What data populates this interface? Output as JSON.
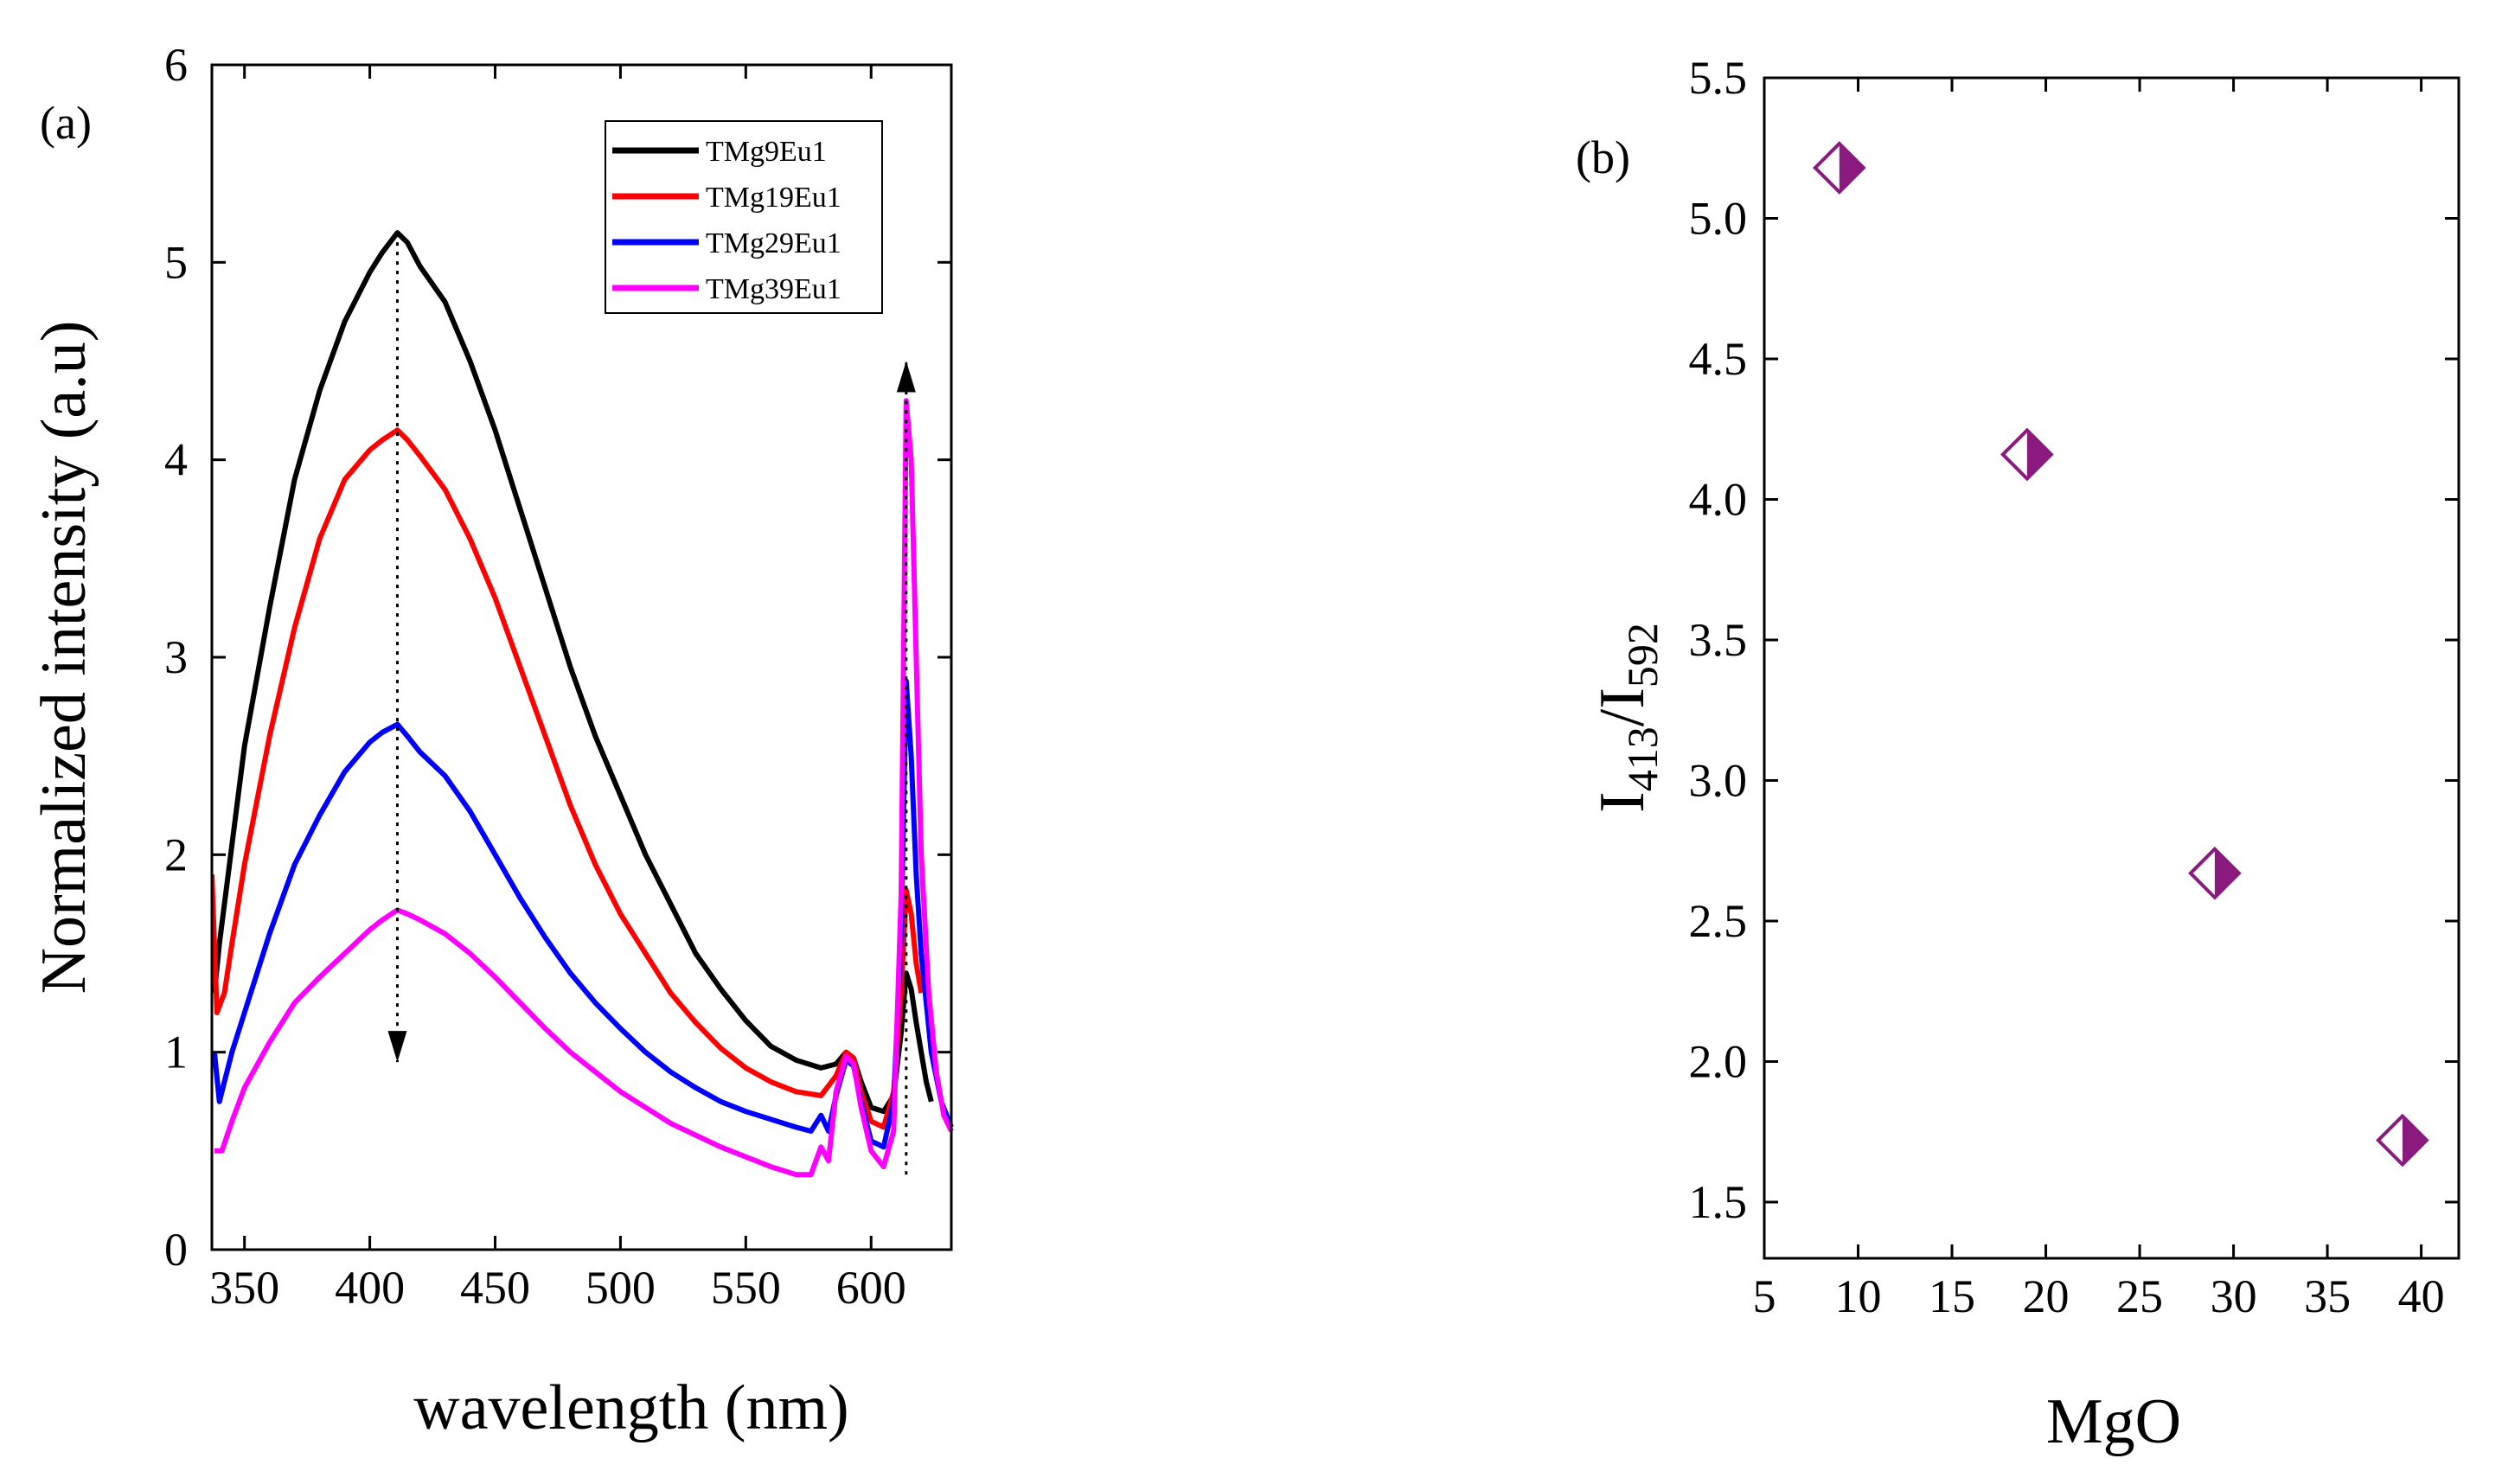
{
  "chart_data": [
    {
      "panel_label": "(a)",
      "type": "line",
      "xlabel": "wavelength (nm)",
      "ylabel": "Normalized intensity (a.u)",
      "xlim": [
        337,
        632
      ],
      "ylim": [
        0,
        6
      ],
      "xticks": [
        350,
        400,
        450,
        500,
        550,
        600
      ],
      "yticks": [
        0,
        1,
        2,
        3,
        4,
        5,
        6
      ],
      "legend_position": "top-right",
      "annotations": [
        {
          "type": "dotted-arrow",
          "direction": "down",
          "x": 411,
          "from_y": 5.15,
          "to_y": 0.95
        },
        {
          "type": "dotted-arrow",
          "direction": "up",
          "x": 614,
          "from_y": 0.38,
          "to_y": 4.5
        }
      ],
      "series": [
        {
          "name": "TMg9Eu1",
          "color": "#000000",
          "x": [
            338,
            340,
            345,
            350,
            360,
            370,
            380,
            390,
            400,
            405,
            411,
            415,
            420,
            430,
            440,
            450,
            460,
            470,
            480,
            490,
            500,
            510,
            520,
            530,
            540,
            550,
            560,
            570,
            580,
            586,
            590,
            593,
            596,
            600,
            605,
            609,
            612,
            614,
            616,
            618,
            620,
            622,
            624
          ],
          "y": [
            1.3,
            1.55,
            2.05,
            2.55,
            3.25,
            3.9,
            4.35,
            4.7,
            4.95,
            5.05,
            5.15,
            5.1,
            4.98,
            4.8,
            4.5,
            4.15,
            3.75,
            3.35,
            2.95,
            2.6,
            2.3,
            2.0,
            1.75,
            1.5,
            1.32,
            1.16,
            1.03,
            0.96,
            0.92,
            0.94,
            1.0,
            0.97,
            0.85,
            0.72,
            0.7,
            0.78,
            1.1,
            1.4,
            1.32,
            1.15,
            1.0,
            0.85,
            0.75
          ]
        },
        {
          "name": "TMg19Eu1",
          "color": "#ff0000",
          "x": [
            337,
            339,
            342,
            345,
            350,
            360,
            370,
            380,
            390,
            400,
            405,
            411,
            415,
            420,
            430,
            440,
            450,
            460,
            470,
            480,
            490,
            500,
            510,
            520,
            530,
            540,
            550,
            560,
            570,
            580,
            586,
            590,
            593,
            596,
            600,
            605,
            609,
            612,
            614,
            616,
            618,
            620
          ],
          "y": [
            1.9,
            1.2,
            1.3,
            1.55,
            1.95,
            2.6,
            3.15,
            3.6,
            3.9,
            4.05,
            4.1,
            4.15,
            4.1,
            4.02,
            3.85,
            3.6,
            3.3,
            2.95,
            2.6,
            2.25,
            1.95,
            1.7,
            1.5,
            1.3,
            1.15,
            1.02,
            0.92,
            0.85,
            0.8,
            0.78,
            0.88,
            1.0,
            0.97,
            0.8,
            0.65,
            0.62,
            0.8,
            1.3,
            1.82,
            1.7,
            1.45,
            1.3
          ]
        },
        {
          "name": "TMg29Eu1",
          "color": "#0000ff",
          "x": [
            338,
            340,
            342,
            345,
            350,
            360,
            370,
            380,
            390,
            400,
            405,
            411,
            415,
            420,
            430,
            440,
            450,
            460,
            470,
            480,
            490,
            500,
            510,
            520,
            530,
            540,
            550,
            560,
            570,
            576,
            580,
            583,
            586,
            590,
            593,
            596,
            600,
            605,
            609,
            612,
            614,
            616,
            618,
            620,
            624,
            628,
            632
          ],
          "y": [
            1.0,
            0.75,
            0.85,
            1.0,
            1.2,
            1.6,
            1.95,
            2.2,
            2.42,
            2.57,
            2.62,
            2.66,
            2.6,
            2.52,
            2.4,
            2.22,
            2.0,
            1.78,
            1.58,
            1.4,
            1.25,
            1.12,
            1.0,
            0.9,
            0.82,
            0.75,
            0.7,
            0.66,
            0.62,
            0.6,
            0.68,
            0.6,
            0.78,
            0.96,
            0.93,
            0.75,
            0.55,
            0.52,
            0.75,
            1.6,
            2.88,
            2.5,
            1.9,
            1.5,
            1.0,
            0.75,
            0.62
          ]
        },
        {
          "name": "TMg39Eu1",
          "color": "#ff00ff",
          "x": [
            338,
            341,
            345,
            350,
            360,
            370,
            380,
            390,
            400,
            405,
            411,
            415,
            420,
            430,
            440,
            450,
            460,
            470,
            480,
            490,
            500,
            510,
            520,
            530,
            540,
            550,
            560,
            570,
            576,
            580,
            583,
            586,
            590,
            593,
            596,
            600,
            605,
            609,
            612,
            614,
            616,
            618,
            620,
            623,
            626,
            629,
            632
          ],
          "y": [
            0.5,
            0.5,
            0.65,
            0.82,
            1.05,
            1.25,
            1.38,
            1.5,
            1.62,
            1.67,
            1.72,
            1.7,
            1.67,
            1.6,
            1.5,
            1.38,
            1.25,
            1.12,
            1.0,
            0.9,
            0.8,
            0.72,
            0.64,
            0.58,
            0.52,
            0.47,
            0.42,
            0.38,
            0.38,
            0.52,
            0.45,
            0.8,
            0.98,
            0.94,
            0.72,
            0.5,
            0.42,
            0.6,
            1.8,
            4.3,
            4.0,
            3.0,
            2.0,
            1.3,
            0.9,
            0.68,
            0.6
          ]
        }
      ]
    },
    {
      "panel_label": "(b)",
      "type": "scatter",
      "xlabel": "MgO",
      "ylabel": {
        "base": "I",
        "sub1": "413",
        "mid": "/I",
        "sub2": "592"
      },
      "xlim": [
        5,
        42
      ],
      "ylim": [
        1.3,
        5.5
      ],
      "xticks": [
        5,
        10,
        15,
        20,
        25,
        30,
        35,
        40
      ],
      "yticks": [
        1.5,
        2.0,
        2.5,
        3.0,
        3.5,
        4.0,
        4.5,
        5.0,
        5.5
      ],
      "ytick_labels": [
        "1.5",
        "2.0",
        "2.5",
        "3.0",
        "3.5",
        "4.0",
        "4.5",
        "5.0",
        "5.5"
      ],
      "marker": "half-filled diamond",
      "marker_color": "#8b1a7f",
      "points": [
        {
          "x": 9,
          "y": 5.18
        },
        {
          "x": 19,
          "y": 4.16
        },
        {
          "x": 29,
          "y": 2.67
        },
        {
          "x": 39,
          "y": 1.72
        }
      ]
    }
  ]
}
